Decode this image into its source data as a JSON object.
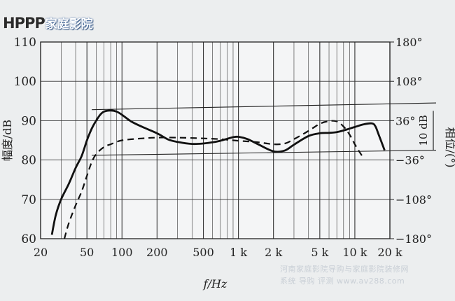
{
  "logo": {
    "mark": "ΗΡΡΡ",
    "text": "家庭影院"
  },
  "watermark": {
    "line1": "河南家庭影院导购与家庭影院装修网",
    "line2": "系统 导购 评测 www.av288.com"
  },
  "chart_data": {
    "type": "line",
    "title": "",
    "xlabel": "f/Hz",
    "ylabel": "幅度/dB",
    "y2label": "相位/(°)",
    "xscale": "log",
    "xlim": [
      20,
      20000
    ],
    "ylim": [
      60,
      110
    ],
    "y2lim": [
      -180,
      180
    ],
    "grid": true,
    "x_ticks": [
      20,
      50,
      100,
      200,
      500,
      1000,
      2000,
      5000,
      10000,
      20000
    ],
    "x_tick_labels": [
      "20",
      "50",
      "100",
      "200",
      "500",
      "1 k",
      "2 k",
      "5 k",
      "10 k",
      "20 k"
    ],
    "y_ticks": [
      60,
      70,
      80,
      90,
      100,
      110
    ],
    "y_tick_labels": [
      "60",
      "70",
      "80",
      "90",
      "100",
      "110"
    ],
    "y2_ticks": [
      -180,
      -108,
      -36,
      36,
      108,
      180
    ],
    "y2_tick_labels": [
      "−180°",
      "−108°",
      "−36°",
      "36°",
      "108°",
      "180°"
    ],
    "scale_bar_label": "10 dB",
    "series": [
      {
        "style": "solid",
        "x": [
          25,
          27,
          30,
          35,
          40,
          45,
          50,
          55,
          60,
          65,
          70,
          80,
          90,
          100,
          120,
          150,
          200,
          250,
          300,
          400,
          500,
          600,
          700,
          800,
          900,
          1000,
          1200,
          1500,
          2000,
          2500,
          3000,
          4000,
          5000,
          6000,
          7000,
          8000,
          10000,
          12000,
          14000,
          15000,
          16000,
          18000
        ],
        "values": [
          61,
          66,
          70,
          74,
          78,
          81,
          85,
          88,
          90,
          91.5,
          92.3,
          92.6,
          92.3,
          91.5,
          89.8,
          88.4,
          86.8,
          85.2,
          84.6,
          84.1,
          84.2,
          84.5,
          84.9,
          85.4,
          85.8,
          85.9,
          85.3,
          83.9,
          82.2,
          82.4,
          83.9,
          86.1,
          86.8,
          86.9,
          87.1,
          87.5,
          88.4,
          89.1,
          89.3,
          88.6,
          86.5,
          82.5
        ]
      },
      {
        "style": "dashed",
        "x": [
          32,
          35,
          40,
          45,
          50,
          55,
          60,
          70,
          80,
          100,
          150,
          200,
          300,
          500,
          700,
          1000,
          1500,
          2000,
          2500,
          3000,
          4000,
          5000,
          6000,
          7000,
          8000,
          9000,
          10000,
          11000,
          12000
        ],
        "values": [
          60,
          64,
          68.5,
          72,
          76,
          79.5,
          81.5,
          83.3,
          84,
          85,
          85.5,
          85.7,
          85.7,
          85.5,
          85.3,
          84.9,
          84.5,
          84,
          84.2,
          85.3,
          87.4,
          89.2,
          89.9,
          89.8,
          88.5,
          86.5,
          84,
          82,
          80.3
        ]
      }
    ],
    "reference_lines": [
      {
        "x": [
          55,
          20000
        ],
        "values": [
          92.8,
          94.5
        ]
      },
      {
        "x": [
          55,
          20000
        ],
        "values": [
          81.2,
          82.5
        ]
      }
    ]
  }
}
